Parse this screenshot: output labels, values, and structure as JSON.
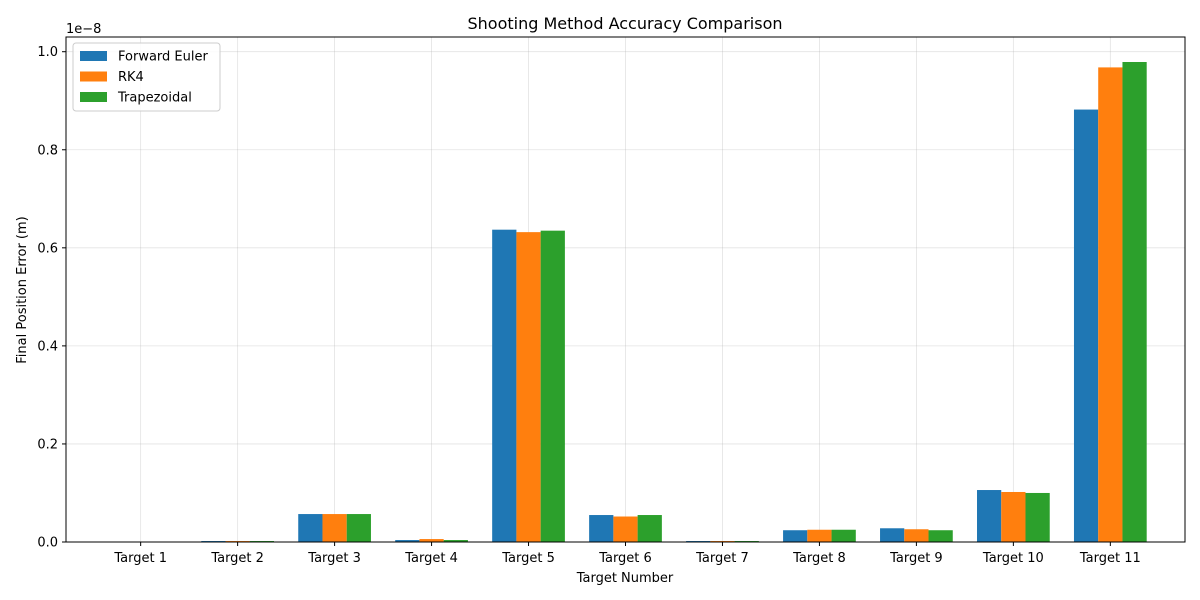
{
  "chart_data": {
    "type": "bar",
    "title": "Shooting Method Accuracy Comparison",
    "xlabel": "Target Number",
    "ylabel": "Final Position Error (m)",
    "offset_label": "1e−8",
    "ylim": [
      0,
      1.03
    ],
    "yticks": [
      0.0,
      0.2,
      0.4,
      0.6,
      0.8,
      1.0
    ],
    "ytick_labels": [
      "0.0",
      "0.2",
      "0.4",
      "0.6",
      "0.8",
      "1.0"
    ],
    "grid": true,
    "legend_position": "top-left",
    "categories": [
      "Target 1",
      "Target 2",
      "Target 3",
      "Target 4",
      "Target 5",
      "Target 6",
      "Target 7",
      "Target 8",
      "Target 9",
      "Target 10",
      "Target 11"
    ],
    "series": [
      {
        "name": "Forward Euler",
        "color": "#1f77b4",
        "values": [
          0.0,
          0.002,
          0.057,
          0.004,
          0.637,
          0.055,
          0.002,
          0.024,
          0.028,
          0.106,
          0.882
        ]
      },
      {
        "name": "RK4",
        "color": "#ff7f0e",
        "values": [
          0.0,
          0.002,
          0.057,
          0.006,
          0.632,
          0.052,
          0.002,
          0.025,
          0.026,
          0.102,
          0.968
        ]
      },
      {
        "name": "Trapezoidal",
        "color": "#2ca02c",
        "values": [
          0.0,
          0.002,
          0.057,
          0.004,
          0.635,
          0.055,
          0.002,
          0.025,
          0.024,
          0.1,
          0.979
        ]
      }
    ]
  }
}
